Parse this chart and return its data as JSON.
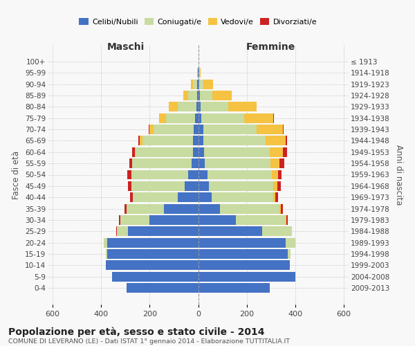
{
  "age_groups": [
    "100+",
    "95-99",
    "90-94",
    "85-89",
    "80-84",
    "75-79",
    "70-74",
    "65-69",
    "60-64",
    "55-59",
    "50-54",
    "45-49",
    "40-44",
    "35-39",
    "30-34",
    "25-29",
    "20-24",
    "15-19",
    "10-14",
    "5-9",
    "0-4"
  ],
  "birth_years": [
    "≤ 1913",
    "1914-1918",
    "1919-1923",
    "1924-1928",
    "1929-1933",
    "1934-1938",
    "1939-1943",
    "1944-1948",
    "1949-1953",
    "1954-1958",
    "1959-1963",
    "1964-1968",
    "1969-1973",
    "1974-1978",
    "1979-1983",
    "1984-1988",
    "1989-1993",
    "1994-1998",
    "1999-2003",
    "2004-2008",
    "2009-2013"
  ],
  "males": {
    "celibe": [
      0,
      1,
      4,
      5,
      8,
      12,
      18,
      20,
      22,
      26,
      40,
      55,
      85,
      140,
      200,
      290,
      375,
      375,
      380,
      355,
      295
    ],
    "coniugato": [
      0,
      2,
      18,
      35,
      75,
      120,
      165,
      210,
      235,
      245,
      235,
      220,
      185,
      155,
      120,
      45,
      15,
      5,
      0,
      0,
      0
    ],
    "vedovo": [
      0,
      1,
      8,
      22,
      38,
      28,
      18,
      10,
      5,
      2,
      1,
      0,
      0,
      0,
      0,
      0,
      0,
      0,
      0,
      0,
      0
    ],
    "divorziato": [
      0,
      0,
      0,
      0,
      0,
      2,
      2,
      8,
      10,
      12,
      15,
      15,
      12,
      8,
      5,
      2,
      0,
      0,
      0,
      0,
      0
    ]
  },
  "females": {
    "nubile": [
      0,
      2,
      5,
      8,
      10,
      14,
      20,
      22,
      25,
      28,
      38,
      45,
      55,
      90,
      155,
      265,
      360,
      370,
      378,
      400,
      295
    ],
    "coniugata": [
      0,
      2,
      15,
      50,
      115,
      175,
      220,
      255,
      270,
      270,
      265,
      265,
      255,
      245,
      205,
      120,
      40,
      10,
      0,
      0,
      0
    ],
    "vedova": [
      2,
      5,
      40,
      80,
      115,
      120,
      110,
      85,
      55,
      38,
      25,
      15,
      8,
      5,
      3,
      0,
      0,
      0,
      0,
      0,
      0
    ],
    "divorziata": [
      0,
      0,
      0,
      0,
      0,
      2,
      3,
      5,
      15,
      18,
      15,
      15,
      12,
      8,
      5,
      2,
      0,
      0,
      0,
      0,
      0
    ]
  },
  "colors": {
    "celibe_nubile": "#4472c4",
    "coniugato_coniugata": "#c8dba0",
    "vedovo_vedova": "#f5c242",
    "divorziato_divorziata": "#cc2222"
  },
  "title": "Popolazione per età, sesso e stato civile - 2014",
  "subtitle": "COMUNE DI LEVERANO (LE) - Dati ISTAT 1° gennaio 2014 - Elaborazione TUTTITALIA.IT",
  "xlabel_left": "Maschi",
  "xlabel_right": "Femmine",
  "ylabel_left": "Fasce di età",
  "ylabel_right": "Anni di nascita",
  "xlim": 620,
  "background_color": "#f8f8f8",
  "grid_color": "#cccccc"
}
